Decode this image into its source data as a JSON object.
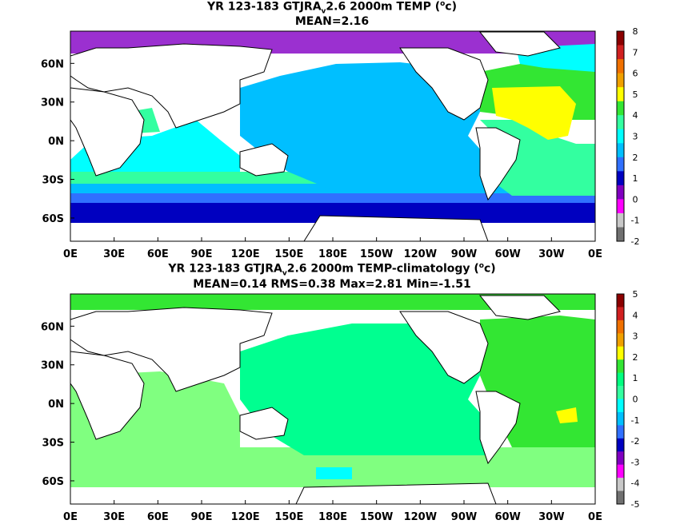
{
  "panels": [
    {
      "title_pre": "YR 123-183 GTJRA",
      "title_sub": "v",
      "title_post": "2.6 2000m TEMP (",
      "title_sup": "o",
      "title_end": "c)",
      "subtitle": "MEAN=2.16",
      "lat_labels": [
        "60N",
        "30N",
        "0N",
        "30S",
        "60S"
      ],
      "lon_labels": [
        "0E",
        "30E",
        "60E",
        "90E",
        "120E",
        "150E",
        "180E",
        "150W",
        "120W",
        "90W",
        "60W",
        "30W",
        "0E"
      ],
      "colorbar_labels": [
        "8",
        "7",
        "6",
        "5",
        "4",
        "3",
        "2",
        "1",
        "0",
        "-1",
        "-2"
      ],
      "colorbar_colors": [
        "#8b0000",
        "#d02020",
        "#f07000",
        "#f0a000",
        "#ffff00",
        "#33e633",
        "#33ffa0",
        "#00ffff",
        "#00bfff",
        "#3070ff",
        "#0000c0",
        "#8000c0",
        "#ff00ff",
        "#c8c8c8",
        "#707070"
      ]
    },
    {
      "title_pre": "YR 123-183 GTJRA",
      "title_sub": "v",
      "title_post": "2.6 2000m TEMP-climatology (",
      "title_sup": "o",
      "title_end": "c)",
      "subtitle": "MEAN=0.14   RMS=0.38   Max=2.81   Min=-1.51",
      "lat_labels": [
        "60N",
        "30N",
        "0N",
        "30S",
        "60S"
      ],
      "lon_labels": [
        "0E",
        "30E",
        "60E",
        "90E",
        "120E",
        "150E",
        "180E",
        "150W",
        "120W",
        "90W",
        "60W",
        "30W",
        "0E"
      ],
      "colorbar_labels": [
        "5",
        "4",
        "3",
        "2",
        "1",
        "0",
        "-1",
        "-2",
        "-3",
        "-4",
        "-5"
      ],
      "colorbar_colors": [
        "#8b0000",
        "#d02020",
        "#f07000",
        "#f0a000",
        "#ffff00",
        "#33e633",
        "#00ff80",
        "#33ffa0",
        "#00ffff",
        "#00bfff",
        "#3070ff",
        "#0000c0",
        "#8000c0",
        "#ff00ff",
        "#c8c8c8",
        "#707070"
      ]
    }
  ]
}
